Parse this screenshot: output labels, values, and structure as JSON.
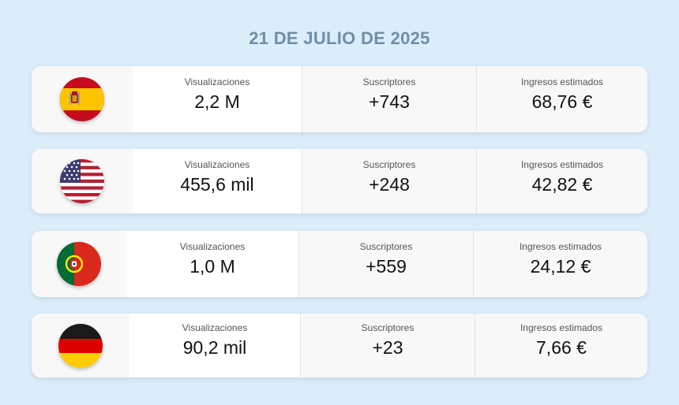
{
  "title": "21 DE JULIO DE 2025",
  "rows": [
    {
      "country": "spain-flag",
      "views_label": "Visualizaciones",
      "views": "2,2 M",
      "subs_label": "Suscriptores",
      "subs": "+743",
      "rev_label": "Ingresos estimados",
      "rev": "68,76 €"
    },
    {
      "country": "usa-flag",
      "views_label": "Visualizaciones",
      "views": "455,6 mil",
      "subs_label": "Suscriptores",
      "subs": "+248",
      "rev_label": "Ingresos estimados",
      "rev": "42,82 €"
    },
    {
      "country": "portugal-flag",
      "views_label": "Visualizaciones",
      "views": "1,0 M",
      "subs_label": "Suscriptores",
      "subs": "+559",
      "rev_label": "Ingresos estimados",
      "rev": "24,12 €"
    },
    {
      "country": "germany-flag",
      "views_label": "Visualizaciones",
      "views": "90,2 mil",
      "subs_label": "Suscriptores",
      "subs": "+23",
      "rev_label": "Ingresos estimados",
      "rev": "7,66 €"
    }
  ],
  "colors": {
    "background": "#dcedfa",
    "title": "#6f8ea6",
    "card": "#ffffff"
  }
}
